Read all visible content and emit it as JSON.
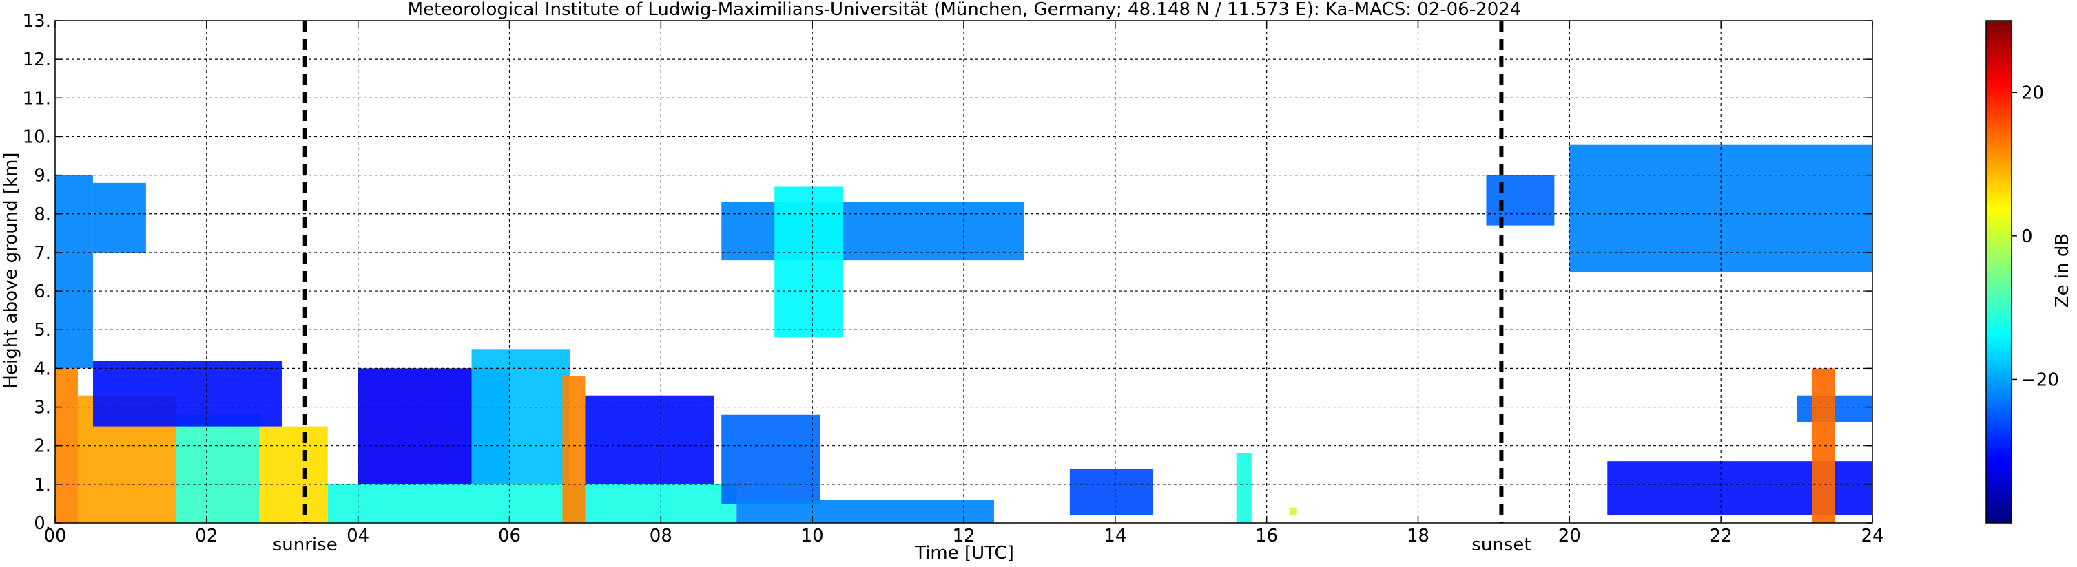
{
  "chart_data": {
    "type": "heatmap",
    "title": "Meteorological Institute of Ludwig-Maximilians-Universität (München, Germany; 48.148 N / 11.573 E):    Ka-MACS: 02-06-2024",
    "xlabel": "Time [UTC]",
    "ylabel": "Height above ground [km]",
    "xlim": [
      0,
      24
    ],
    "ylim": [
      0,
      13
    ],
    "xticks": [
      0,
      2,
      4,
      6,
      8,
      10,
      12,
      14,
      16,
      18,
      20,
      22,
      24
    ],
    "xtick_labels": [
      "00",
      "02",
      "04",
      "06",
      "08",
      "10",
      "12",
      "14",
      "16",
      "18",
      "20",
      "22",
      "24"
    ],
    "yticks": [
      0,
      1,
      2,
      3,
      4,
      5,
      6,
      7,
      8,
      9,
      10,
      11,
      12,
      13
    ],
    "ytick_labels": [
      "0.",
      "1.",
      "2.",
      "3.",
      "4.",
      "5.",
      "6.",
      "7.",
      "8.",
      "9.",
      "10.",
      "11.",
      "12.",
      "13."
    ],
    "grid": true,
    "markers": [
      {
        "label": "sunrise",
        "x": 3.3
      },
      {
        "label": "sunset",
        "x": 19.1
      }
    ],
    "colorbar": {
      "label": "Ze in dB",
      "range": [
        -40,
        30
      ],
      "ticks": [
        20,
        0,
        -20
      ],
      "tick_labels": [
        "20",
        "0",
        "−20"
      ],
      "colormap": "jet",
      "colors": [
        "#00007f",
        "#0000ff",
        "#007fff",
        "#00ffff",
        "#7fff7f",
        "#ffff00",
        "#ff7f00",
        "#ff0000",
        "#7f0000"
      ]
    },
    "echo_regions": [
      {
        "x": [
          0.0,
          0.3
        ],
        "y": [
          0.0,
          4.0
        ],
        "ze": 12
      },
      {
        "x": [
          0.3,
          1.6
        ],
        "y": [
          0.0,
          3.3
        ],
        "ze": 10
      },
      {
        "x": [
          1.6,
          2.7
        ],
        "y": [
          0.0,
          2.8
        ],
        "ze": -10
      },
      {
        "x": [
          2.7,
          3.6
        ],
        "y": [
          0.0,
          2.5
        ],
        "ze": 6
      },
      {
        "x": [
          0.0,
          0.5
        ],
        "y": [
          4.0,
          9.0
        ],
        "ze": -22
      },
      {
        "x": [
          0.5,
          1.2
        ],
        "y": [
          7.0,
          8.8
        ],
        "ze": -22
      },
      {
        "x": [
          0.5,
          3.0
        ],
        "y": [
          2.5,
          4.2
        ],
        "ze": -30
      },
      {
        "x": [
          3.6,
          9.0
        ],
        "y": [
          0.0,
          1.0
        ],
        "ze": -12
      },
      {
        "x": [
          4.0,
          6.0
        ],
        "y": [
          1.0,
          4.0
        ],
        "ze": -32
      },
      {
        "x": [
          5.5,
          6.8
        ],
        "y": [
          1.0,
          4.5
        ],
        "ze": -18
      },
      {
        "x": [
          6.7,
          7.0
        ],
        "y": [
          0.0,
          3.8
        ],
        "ze": 12
      },
      {
        "x": [
          7.0,
          8.7
        ],
        "y": [
          1.0,
          3.3
        ],
        "ze": -30
      },
      {
        "x": [
          8.8,
          10.1
        ],
        "y": [
          0.5,
          2.8
        ],
        "ze": -24
      },
      {
        "x": [
          9.0,
          12.4
        ],
        "y": [
          0.0,
          0.6
        ],
        "ze": -22
      },
      {
        "x": [
          8.8,
          12.8
        ],
        "y": [
          6.8,
          8.3
        ],
        "ze": -22
      },
      {
        "x": [
          9.5,
          10.4
        ],
        "y": [
          4.8,
          8.7
        ],
        "ze": -14
      },
      {
        "x": [
          13.4,
          14.5
        ],
        "y": [
          0.2,
          1.4
        ],
        "ze": -26
      },
      {
        "x": [
          15.6,
          15.8
        ],
        "y": [
          0.0,
          1.8
        ],
        "ze": -12
      },
      {
        "x": [
          16.3,
          16.4
        ],
        "y": [
          0.2,
          0.4
        ],
        "ze": 0
      },
      {
        "x": [
          18.9,
          19.8
        ],
        "y": [
          7.7,
          9.0
        ],
        "ze": -24
      },
      {
        "x": [
          20.0,
          24.0
        ],
        "y": [
          6.5,
          9.8
        ],
        "ze": -22
      },
      {
        "x": [
          20.5,
          24.0
        ],
        "y": [
          0.2,
          1.6
        ],
        "ze": -30
      },
      {
        "x": [
          23.0,
          24.0
        ],
        "y": [
          2.6,
          3.3
        ],
        "ze": -24
      },
      {
        "x": [
          23.2,
          23.5
        ],
        "y": [
          0.0,
          4.0
        ],
        "ze": 14
      }
    ]
  }
}
